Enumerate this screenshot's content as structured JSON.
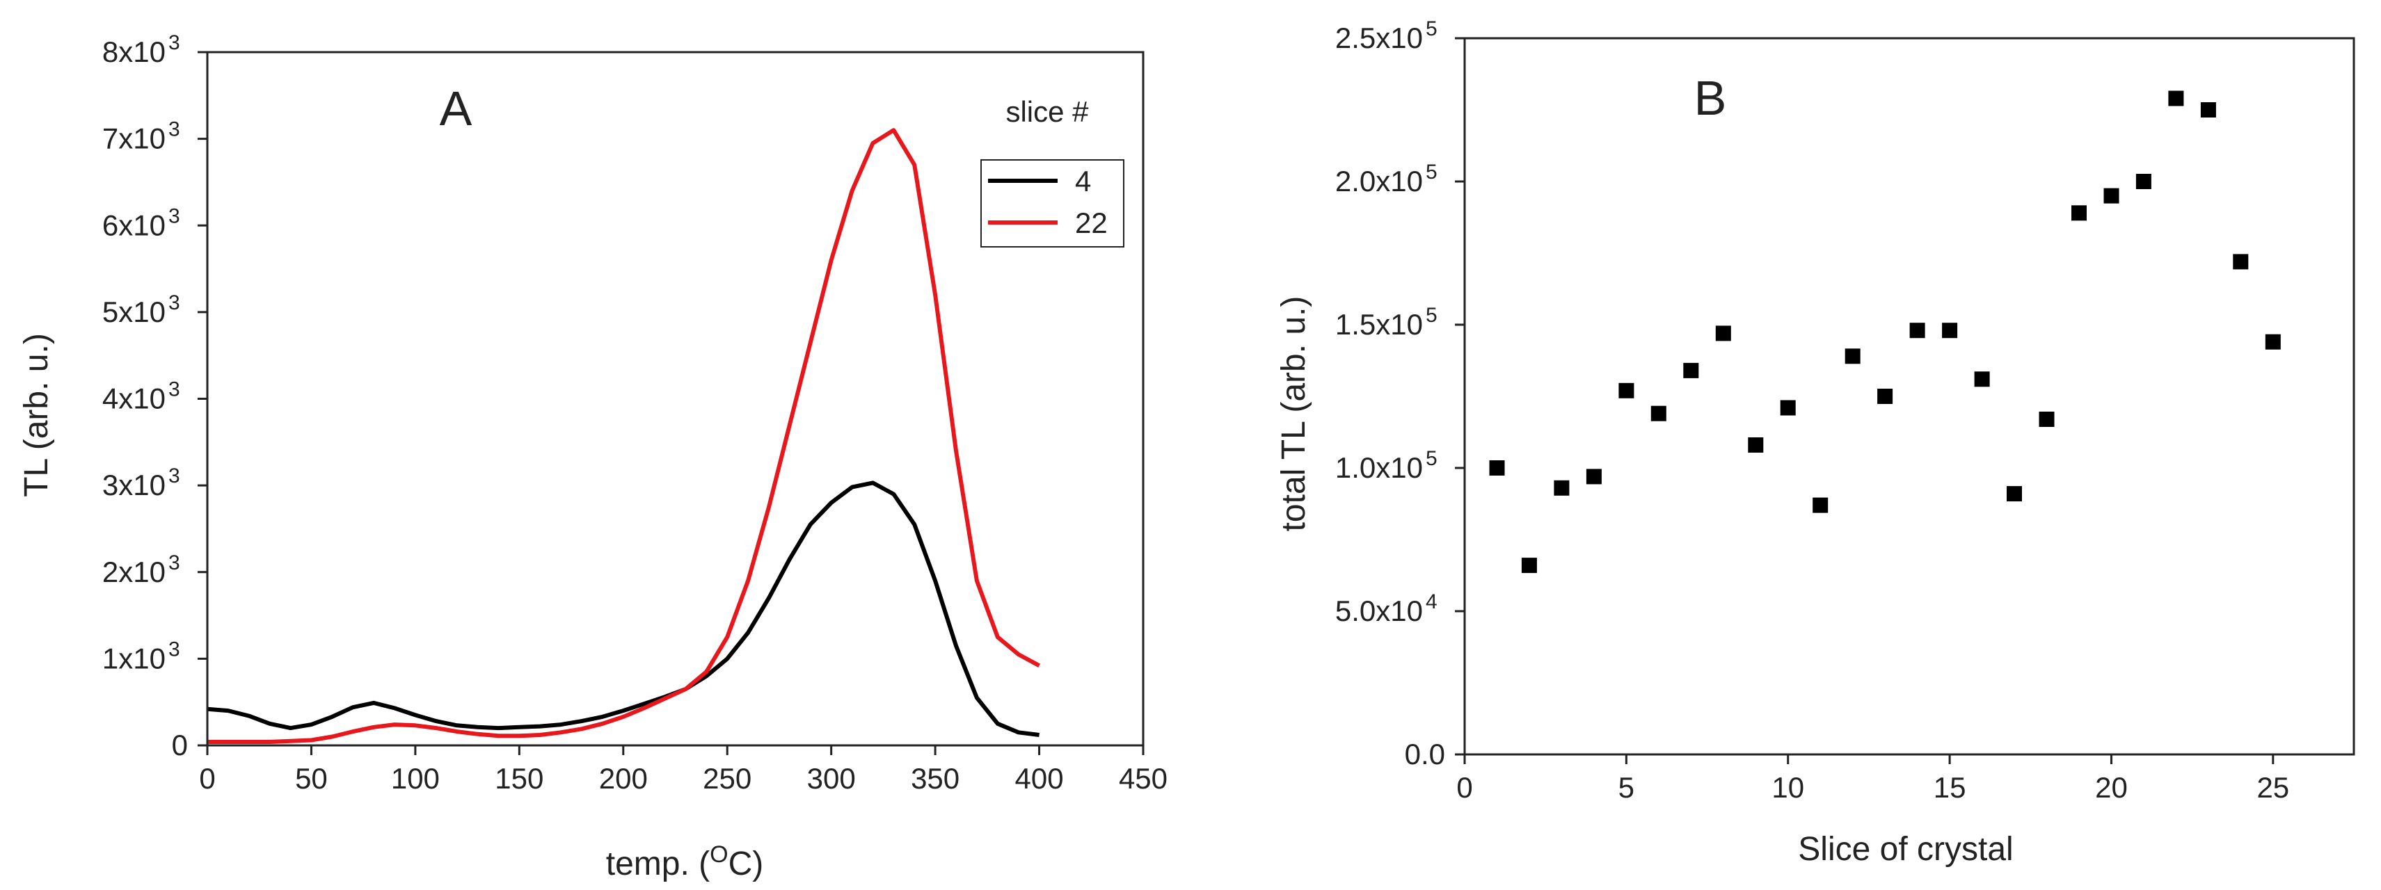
{
  "chart_data": [
    {
      "panel": "A",
      "type": "line",
      "xlabel_main": "temp. (",
      "xlabel_sup": "O",
      "xlabel_tail": "C)",
      "ylabel": "TL (arb. u.)",
      "xlim": [
        0,
        450
      ],
      "ylim": [
        0,
        8000
      ],
      "x_ticks": [
        0,
        50,
        100,
        150,
        200,
        250,
        300,
        350,
        400,
        450
      ],
      "y_ticks": [
        {
          "value": 0,
          "base": "0",
          "exp": ""
        },
        {
          "value": 1000,
          "base": "1x10",
          "exp": "3"
        },
        {
          "value": 2000,
          "base": "2x10",
          "exp": "3"
        },
        {
          "value": 3000,
          "base": "3x10",
          "exp": "3"
        },
        {
          "value": 4000,
          "base": "4x10",
          "exp": "3"
        },
        {
          "value": 5000,
          "base": "5x10",
          "exp": "3"
        },
        {
          "value": 6000,
          "base": "6x10",
          "exp": "3"
        },
        {
          "value": 7000,
          "base": "7x10",
          "exp": "3"
        },
        {
          "value": 8000,
          "base": "8x10",
          "exp": "3"
        }
      ],
      "legend_title": "slice #",
      "legend_position": "top-right",
      "series": [
        {
          "name": "4",
          "color": "#000000",
          "x": [
            0,
            10,
            20,
            30,
            40,
            50,
            60,
            70,
            80,
            90,
            100,
            110,
            120,
            130,
            140,
            150,
            160,
            170,
            180,
            190,
            200,
            210,
            220,
            230,
            240,
            250,
            260,
            270,
            280,
            290,
            300,
            310,
            320,
            330,
            340,
            350,
            360,
            370,
            380,
            390,
            400
          ],
          "y": [
            420,
            400,
            340,
            250,
            200,
            240,
            330,
            440,
            490,
            430,
            350,
            280,
            230,
            210,
            200,
            210,
            220,
            240,
            280,
            330,
            400,
            480,
            560,
            650,
            800,
            1000,
            1300,
            1700,
            2150,
            2550,
            2800,
            2980,
            3030,
            2900,
            2550,
            1900,
            1150,
            550,
            250,
            150,
            120
          ]
        },
        {
          "name": "22",
          "color": "#e8171c",
          "x": [
            0,
            10,
            20,
            30,
            40,
            50,
            60,
            70,
            80,
            90,
            100,
            110,
            120,
            130,
            140,
            150,
            160,
            170,
            180,
            190,
            200,
            210,
            220,
            230,
            240,
            250,
            260,
            270,
            280,
            290,
            300,
            310,
            320,
            330,
            340,
            350,
            360,
            370,
            380,
            390,
            400
          ],
          "y": [
            40,
            40,
            40,
            40,
            50,
            60,
            100,
            160,
            210,
            240,
            230,
            200,
            160,
            130,
            110,
            110,
            120,
            150,
            190,
            250,
            330,
            430,
            540,
            650,
            850,
            1250,
            1900,
            2750,
            3700,
            4650,
            5600,
            6400,
            6950,
            7100,
            6700,
            5200,
            3400,
            1900,
            1250,
            1050,
            920
          ]
        }
      ]
    },
    {
      "panel": "B",
      "type": "scatter",
      "xlabel": "Slice of crystal",
      "ylabel": "total TL (arb. u.)",
      "xlim": [
        0,
        27.5
      ],
      "ylim": [
        0,
        250000
      ],
      "x_ticks": [
        0,
        5,
        10,
        15,
        20,
        25
      ],
      "y_ticks": [
        {
          "value": 0,
          "base": "0.0",
          "exp": ""
        },
        {
          "value": 50000,
          "base": "5.0x10",
          "exp": "4"
        },
        {
          "value": 100000,
          "base": "1.0x10",
          "exp": "5"
        },
        {
          "value": 150000,
          "base": "1.5x10",
          "exp": "5"
        },
        {
          "value": 200000,
          "base": "2.0x10",
          "exp": "5"
        },
        {
          "value": 250000,
          "base": "2.5x10",
          "exp": "5"
        }
      ],
      "marker_color": "#000000",
      "x": [
        1,
        2,
        3,
        4,
        5,
        6,
        7,
        8,
        9,
        10,
        11,
        12,
        13,
        14,
        15,
        16,
        17,
        18,
        19,
        20,
        21,
        22,
        23,
        24,
        25
      ],
      "y": [
        100000,
        66000,
        93000,
        97000,
        127000,
        119000,
        134000,
        147000,
        108000,
        121000,
        87000,
        139000,
        125000,
        148000,
        148000,
        131000,
        91000,
        117000,
        189000,
        195000,
        200000,
        229000,
        225000,
        172000,
        144000
      ]
    }
  ]
}
